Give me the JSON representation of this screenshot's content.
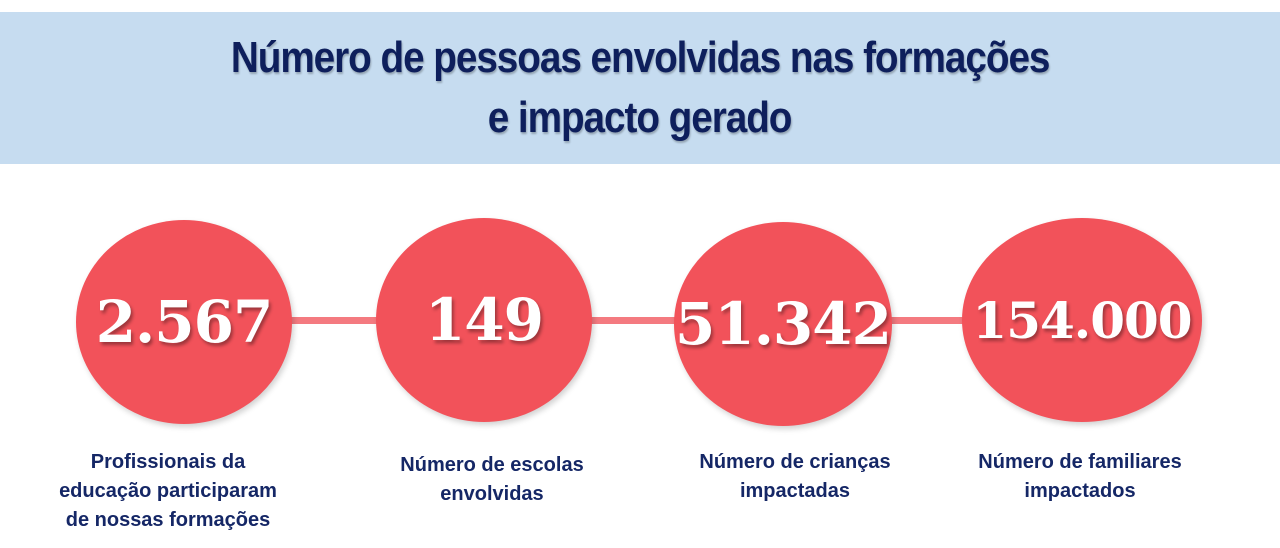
{
  "header": {
    "title_line1": "Número de pessoas envolvidas nas formações",
    "title_line2": "e impacto gerado"
  },
  "stats": [
    {
      "value": "2.567",
      "label_lines": [
        "Profissionais da",
        "educação participaram",
        "de nossas formações"
      ]
    },
    {
      "value": "149",
      "label_lines": [
        "Número de escolas",
        "envolvidas"
      ]
    },
    {
      "value": "51.342",
      "label_lines": [
        "Número de crianças",
        "impactadas"
      ]
    },
    {
      "value": "154.000",
      "label_lines": [
        "Número de familiares",
        "impactados"
      ]
    }
  ],
  "colors": {
    "banner_background": "#c6dcf0",
    "title_text": "#0e1f5c",
    "circle_fill": "#f2525a",
    "connector": "#f47a80",
    "label_text": "#152766",
    "number_text": "#ffffff"
  }
}
